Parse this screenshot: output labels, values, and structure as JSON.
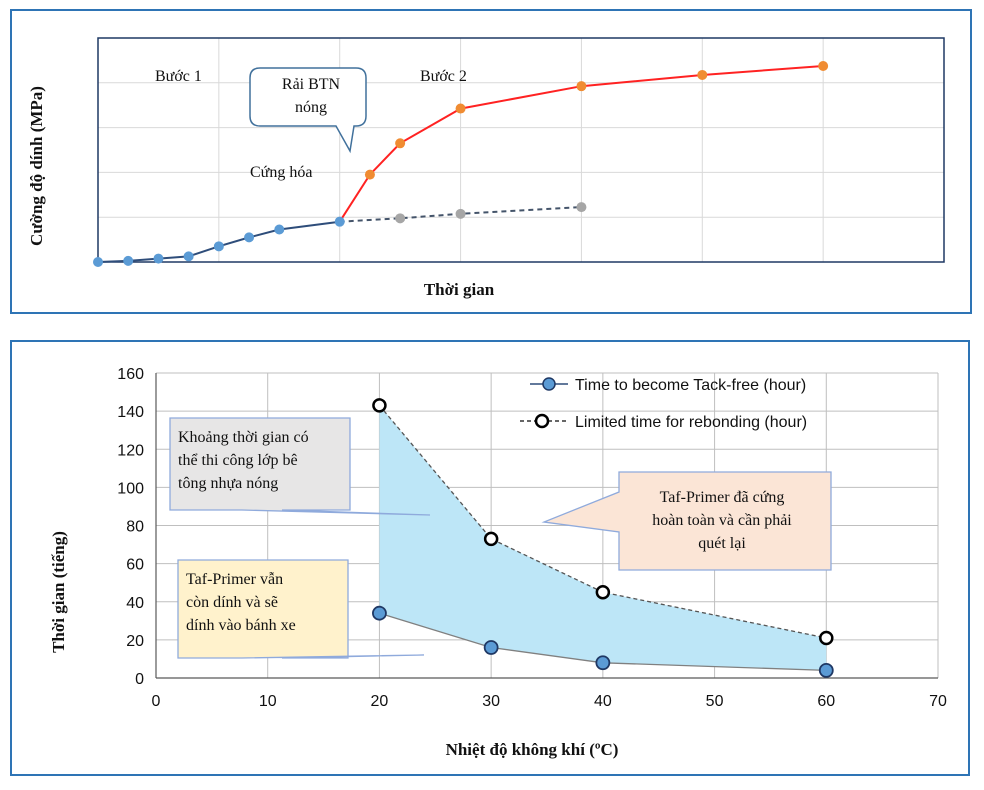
{
  "chart_data": [
    {
      "type": "line",
      "ylabel": "Cường độ dính (MPa)",
      "xlabel": "Thời gian",
      "annotations": {
        "step1": "Bước 1",
        "step2": "Bước 2",
        "curing": "Cứng hóa",
        "callout": "Rải BTN\nnóng"
      },
      "grid": true,
      "axis_ticks_shown": false,
      "colors": {
        "initial": "#5b9bd5",
        "line_initial": "#2e4d7a",
        "step2": "#ff2222",
        "step2_marker": "#f08c32",
        "without_step2": "#a6a6a6",
        "dashed_line": "#44546a"
      },
      "series": [
        {
          "x": [
            0,
            1,
            2,
            3,
            4,
            5,
            6,
            8
          ],
          "y": [
            0.0,
            0.1,
            0.3,
            0.5,
            1.4,
            2.2,
            2.9,
            3.6
          ]
        },
        {
          "x": [
            8,
            9,
            10,
            12,
            16,
            20,
            24
          ],
          "y": [
            3.6,
            7.8,
            10.6,
            13.7,
            15.7,
            16.7,
            17.5
          ]
        },
        {
          "x": [
            8,
            10,
            12,
            16
          ],
          "y": [
            3.6,
            3.9,
            4.3,
            4.9
          ]
        }
      ]
    },
    {
      "type": "line",
      "xlabel": "Nhiệt độ không khí (ºC)",
      "ylabel": "Thời gian (tiếng)",
      "xlim": [
        0,
        70
      ],
      "ylim": [
        0,
        160
      ],
      "xticks": [
        "0",
        "10",
        "20",
        "30",
        "40",
        "50",
        "60",
        "70"
      ],
      "yticks": [
        "0",
        "20",
        "40",
        "60",
        "80",
        "100",
        "120",
        "140",
        "160"
      ],
      "grid": true,
      "legend_position": "top-right",
      "colors": {
        "tackfree_fill": "#5b9bd5",
        "line": "#595959",
        "shade": "#bde6f7"
      },
      "series": [
        {
          "name": "Time to become Tack-free (hour)",
          "x": [
            20,
            30,
            40,
            60
          ],
          "y": [
            34,
            16,
            8,
            4
          ]
        },
        {
          "name": "Limited time for rebonding (hour)",
          "x": [
            20,
            30,
            40,
            60
          ],
          "y": [
            143,
            73,
            45,
            21
          ]
        }
      ],
      "annotations": {
        "window": "Khoảng thời gian có\nthể thi công lớp bê\ntông nhựa nóng",
        "cured": "Taf-Primer đã cứng\nhoàn toàn và cần phải\nquét lại",
        "sticky": "Taf-Primer vẫn\ncòn dính và sẽ\ndính vào bánh xe"
      }
    }
  ]
}
